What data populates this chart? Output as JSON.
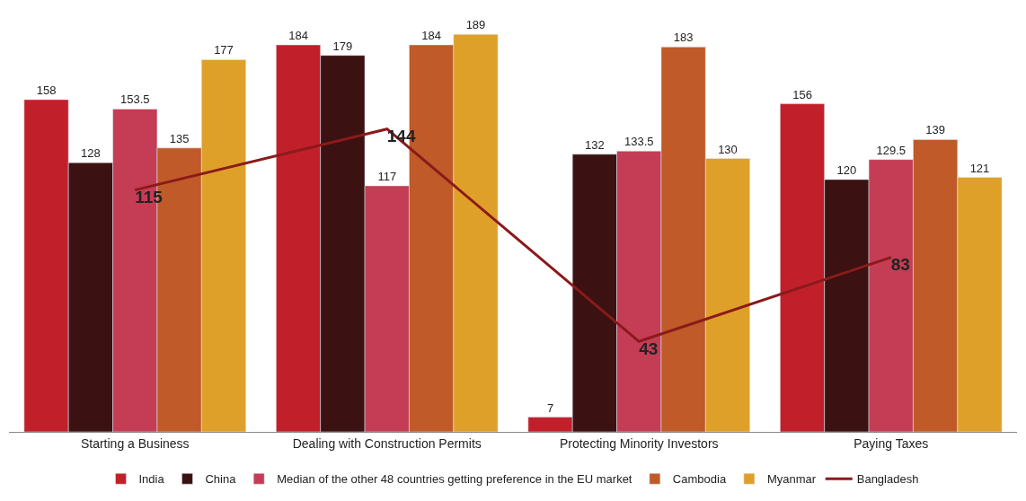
{
  "chart_data": {
    "type": "bar",
    "categories": [
      "Starting a Business",
      "Dealing with Construction Permits",
      "Protecting Minority Investors",
      "Paying Taxes"
    ],
    "series": [
      {
        "name": "India",
        "color": "#c1202a",
        "values": [
          158,
          184,
          7,
          156
        ]
      },
      {
        "name": "China",
        "color": "#3b1111",
        "values": [
          128,
          179,
          132,
          120
        ]
      },
      {
        "name": "Median of the other 48 countries getting preference in the EU market",
        "color": "#c43d55",
        "values": [
          153.5,
          117,
          133.5,
          129.5
        ]
      },
      {
        "name": "Cambodia",
        "color": "#c05a28",
        "values": [
          135,
          184,
          183,
          139
        ]
      },
      {
        "name": "Myanmar",
        "color": "#dfa02a",
        "values": [
          177,
          189,
          130,
          121
        ]
      },
      {
        "name": "Bangladesh",
        "color": "#8b1a1a",
        "type": "line",
        "values": [
          115,
          144,
          43,
          83
        ]
      }
    ],
    "tick_labels": "x",
    "data_labels": true,
    "legend": "bottom",
    "marker": "none"
  }
}
